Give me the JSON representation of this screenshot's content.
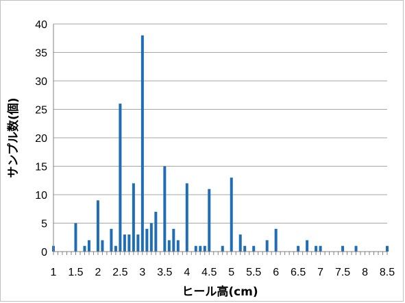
{
  "chart_data": {
    "type": "bar",
    "title": "",
    "xlabel": "ヒール高(cm)",
    "ylabel": "サンプル数(個)",
    "xlim": [
      1,
      8.5
    ],
    "ylim": [
      0,
      40
    ],
    "x_ticks": [
      "1",
      "1.5",
      "2",
      "2.5",
      "3",
      "3.5",
      "4",
      "4.5",
      "5",
      "5.5",
      "6",
      "6.5",
      "7",
      "7.5",
      "8",
      "8.5"
    ],
    "y_ticks": [
      "0",
      "5",
      "10",
      "15",
      "20",
      "25",
      "30",
      "35",
      "40"
    ],
    "grid": "horizontal",
    "bar_color": "#1f6db5",
    "x": [
      1,
      1.5,
      1.7,
      1.8,
      2,
      2.1,
      2.3,
      2.4,
      2.5,
      2.6,
      2.7,
      2.8,
      2.9,
      3,
      3.1,
      3.2,
      3.3,
      3.5,
      3.6,
      3.7,
      3.8,
      4,
      4.2,
      4.3,
      4.4,
      4.5,
      4.8,
      5,
      5.2,
      5.3,
      5.5,
      5.8,
      6,
      6.5,
      6.7,
      6.9,
      7,
      7.5,
      7.8,
      8.5
    ],
    "values": [
      1,
      5,
      1,
      2,
      9,
      2,
      4,
      1,
      26,
      3,
      3,
      12,
      3,
      38,
      4,
      5,
      7,
      15,
      2,
      4,
      2,
      12,
      1,
      1,
      1,
      11,
      1,
      13,
      3,
      1,
      1,
      2,
      4,
      1,
      2,
      1,
      1,
      1,
      1,
      1
    ]
  }
}
